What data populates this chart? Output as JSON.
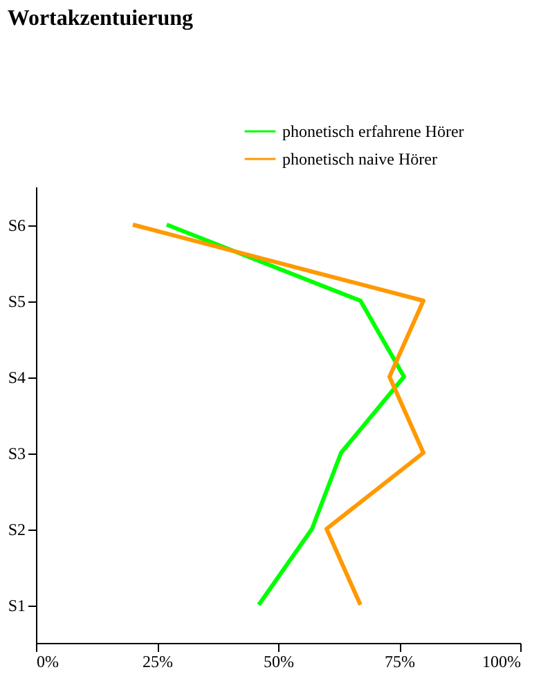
{
  "chart_data": {
    "type": "line",
    "title": "Wortakzentuierung",
    "orientation": "horizontal",
    "categories": [
      "S6",
      "S5",
      "S4",
      "S3",
      "S2",
      "S1"
    ],
    "series": [
      {
        "name": "phonetisch erfahrene Hörer",
        "color": "#00ff00",
        "values": [
          27,
          67,
          76,
          63,
          57,
          46
        ]
      },
      {
        "name": "phonetisch naive Hörer",
        "color": "#ff9900",
        "values": [
          20,
          80,
          73,
          80,
          60,
          67
        ]
      }
    ],
    "xlim": [
      0,
      100
    ],
    "xticks": [
      {
        "value": 0,
        "label": "0%"
      },
      {
        "value": 25,
        "label": "25%"
      },
      {
        "value": 50,
        "label": "50%"
      },
      {
        "value": 75,
        "label": "75%"
      },
      {
        "value": 100,
        "label": "100%"
      }
    ],
    "grid": false,
    "legend": "top right"
  }
}
